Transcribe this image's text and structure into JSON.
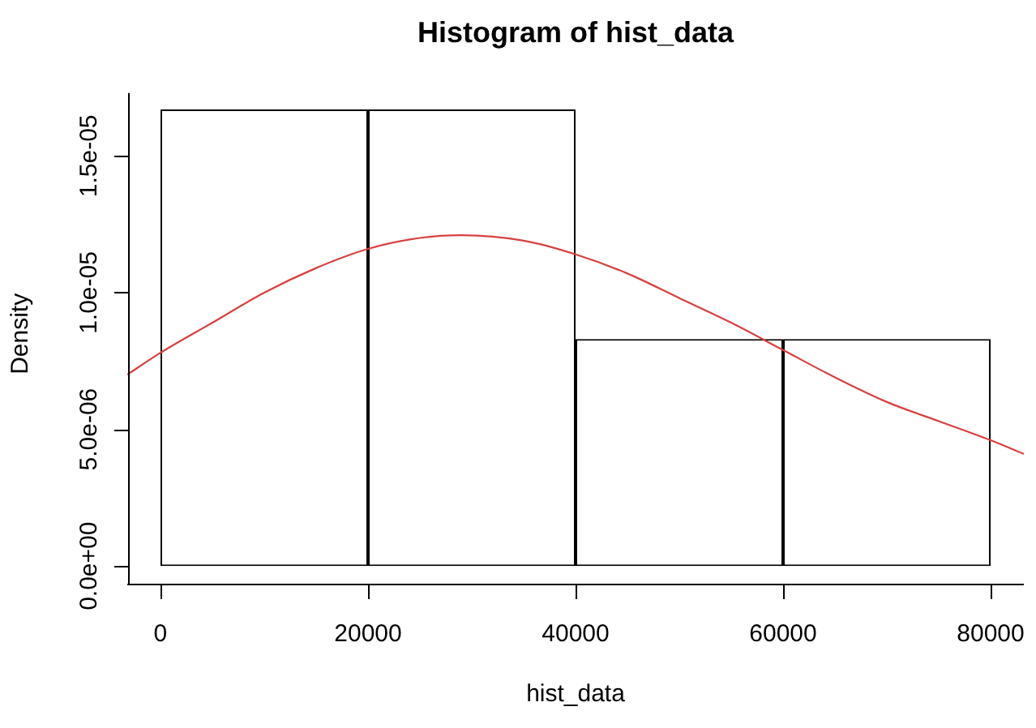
{
  "chart_data": {
    "type": "histogram",
    "title": "Histogram of hist_data",
    "xlabel": "hist_data",
    "ylabel": "Density",
    "bins": [
      0,
      20000,
      40000,
      60000,
      80000
    ],
    "values": [
      1.67e-05,
      1.67e-05,
      8.3e-06,
      8.3e-06
    ],
    "color": "#ffffff",
    "xlim": [
      -3200,
      83200
    ],
    "ylim": [
      -6.7e-07,
      1.73e-05
    ],
    "xticks": [
      0,
      20000,
      40000,
      60000,
      80000
    ],
    "yticks": [
      {
        "value": 0,
        "label": "0.0e+00"
      },
      {
        "value": 5e-06,
        "label": "5.0e-06"
      },
      {
        "value": 1e-05,
        "label": "1.0e-05"
      },
      {
        "value": 1.5e-05,
        "label": "1.5e-05"
      }
    ],
    "series": [
      {
        "type": "line",
        "color": "#d84040",
        "x": [
          -3200,
          0,
          5000,
          10000,
          15000,
          20000,
          25000,
          29000,
          35000,
          40000,
          45000,
          50000,
          55000,
          60000,
          65000,
          70000,
          75000,
          80000,
          83200
        ],
        "values": [
          7e-06,
          7.8e-06,
          8.9e-06,
          1e-05,
          1.09e-05,
          1.16e-05,
          1.2e-05,
          1.21e-05,
          1.19e-05,
          1.14e-05,
          1.07e-05,
          9.8e-06,
          8.9e-06,
          7.9e-06,
          6.9e-06,
          6e-06,
          5.3e-06,
          4.6e-06,
          4.1e-06
        ]
      }
    ]
  }
}
